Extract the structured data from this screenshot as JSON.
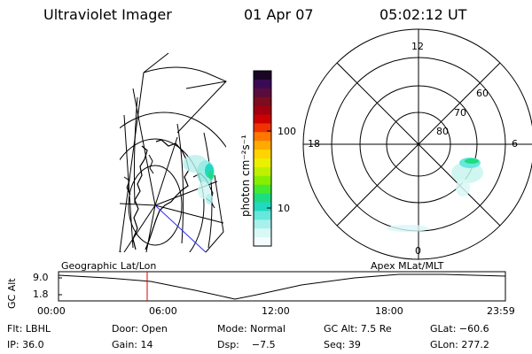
{
  "header": {
    "title": "Ultraviolet Imager",
    "date": "01 Apr 07",
    "time": "05:02:12 UT"
  },
  "colorbar": {
    "label": "photon cm⁻²s⁻¹",
    "ticks": [
      "100",
      "10"
    ],
    "colors": [
      "#1a0526",
      "#3a0b55",
      "#5a0c3d",
      "#7a0d1f",
      "#a00010",
      "#cc0000",
      "#ee3300",
      "#ff7700",
      "#ffaa00",
      "#ffd400",
      "#eaf000",
      "#bff000",
      "#88ee00",
      "#44ea30",
      "#1edc80",
      "#22d8c0",
      "#66e8dc",
      "#a8f0ec",
      "#d8f8f6",
      "#f4fcfc"
    ]
  },
  "polar_plot": {
    "hour_labels": {
      "top": "12",
      "left": "18",
      "right": "6",
      "bottom": "0"
    },
    "lat_labels": [
      "60",
      "70",
      "80"
    ]
  },
  "timeline": {
    "axis_label": "GC Alt",
    "yticks": [
      "9.0",
      "1.8"
    ],
    "left_title": "Geographic Lat/Lon",
    "right_title": "Apex MLat/MLT",
    "xticks": [
      "00:00",
      "06:00",
      "12:00",
      "18:00",
      "23:59"
    ],
    "marker_color": "#dd0000"
  },
  "info": {
    "filter": "Flt: LBHL",
    "door": "Door: Open",
    "mode": "Mode: Normal",
    "gc_alt": "GC Alt: 7.5 Re",
    "glat": "GLat: −60.6",
    "ip": "IP: 36.0",
    "gain": "Gain: 14",
    "dsp": "Dsp:    −7.5",
    "seq": "Seq: 39",
    "glon": "GLon: 277.2"
  }
}
